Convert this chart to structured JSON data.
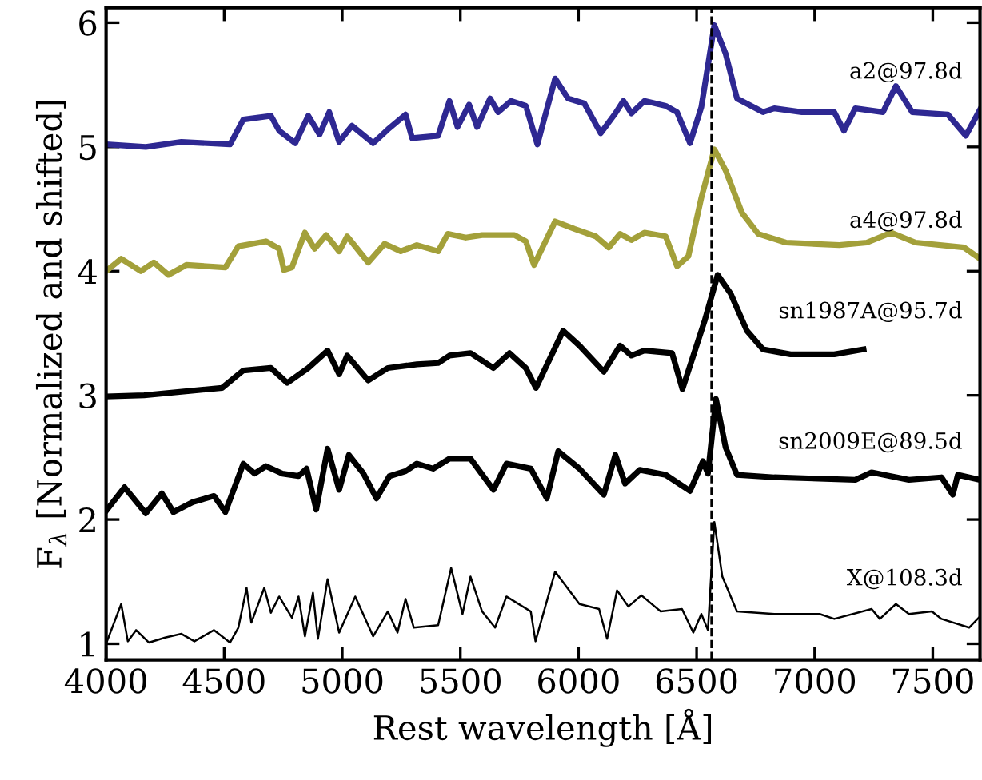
{
  "chart_data": {
    "type": "line",
    "xlabel": "Rest wavelength [Å]",
    "ylabel": "F$_{λ}$ [Normalized and shifted]",
    "xlim": [
      4000,
      7700
    ],
    "xticks": [
      4000,
      4500,
      5000,
      5500,
      6000,
      6500,
      7000,
      7500
    ],
    "ylim": [
      0.87,
      6.12
    ],
    "yticks": [
      1,
      2,
      3,
      4,
      5,
      6
    ],
    "grid": false,
    "legend": false,
    "marker": "none",
    "line_style": "solid",
    "ref_lines": [
      {
        "axis": "x",
        "value": 6563,
        "color": "#000000",
        "line_style": "dashed"
      }
    ],
    "series": [
      {
        "name": "a2@97.8d",
        "color": "#2e2892",
        "x": [
          4000,
          4168,
          4319,
          4525,
          4581,
          4698,
          4733,
          4801,
          4856,
          4904,
          4945,
          4987,
          5041,
          5131,
          5193,
          5268,
          5296,
          5406,
          5454,
          5488,
          5537,
          5571,
          5626,
          5660,
          5715,
          5777,
          5826,
          5901,
          5956,
          6025,
          6094,
          6156,
          6190,
          6224,
          6279,
          6369,
          6417,
          6472,
          6520,
          6575,
          6623,
          6671,
          6781,
          6829,
          6946,
          7083,
          7124,
          7172,
          7289,
          7344,
          7413,
          7564,
          7640,
          7700
        ],
        "values": [
          5.02,
          5.0,
          5.04,
          5.02,
          5.22,
          5.25,
          5.13,
          5.03,
          5.25,
          5.1,
          5.28,
          5.04,
          5.17,
          5.03,
          5.14,
          5.26,
          5.07,
          5.09,
          5.37,
          5.16,
          5.34,
          5.16,
          5.39,
          5.28,
          5.37,
          5.33,
          5.02,
          5.55,
          5.39,
          5.35,
          5.11,
          5.27,
          5.37,
          5.27,
          5.37,
          5.33,
          5.28,
          5.03,
          5.32,
          5.98,
          5.75,
          5.39,
          5.28,
          5.31,
          5.28,
          5.28,
          5.13,
          5.31,
          5.28,
          5.49,
          5.28,
          5.26,
          5.09,
          5.3
        ]
      },
      {
        "name": "a4@97.8d",
        "color": "#a3a03a",
        "x": [
          4000,
          4064,
          4147,
          4202,
          4264,
          4340,
          4505,
          4560,
          4677,
          4733,
          4753,
          4787,
          4842,
          4883,
          4932,
          4987,
          5021,
          5110,
          5179,
          5248,
          5316,
          5406,
          5447,
          5523,
          5592,
          5729,
          5777,
          5812,
          5901,
          5983,
          6073,
          6128,
          6176,
          6224,
          6279,
          6369,
          6417,
          6465,
          6520,
          6575,
          6623,
          6692,
          6761,
          6878,
          7104,
          7221,
          7324,
          7427,
          7633,
          7700
        ],
        "values": [
          4.0,
          4.1,
          4.0,
          4.07,
          3.97,
          4.05,
          4.03,
          4.2,
          4.24,
          4.18,
          4.01,
          4.03,
          4.31,
          4.18,
          4.29,
          4.16,
          4.28,
          4.07,
          4.22,
          4.16,
          4.21,
          4.16,
          4.3,
          4.27,
          4.29,
          4.29,
          4.24,
          4.05,
          4.4,
          4.34,
          4.28,
          4.19,
          4.3,
          4.25,
          4.31,
          4.28,
          4.04,
          4.12,
          4.59,
          4.98,
          4.81,
          4.47,
          4.3,
          4.23,
          4.21,
          4.23,
          4.31,
          4.23,
          4.19,
          4.1
        ]
      },
      {
        "name": "sn1987A@95.7d",
        "color": "#000000",
        "x": [
          4000,
          4161,
          4491,
          4581,
          4698,
          4767,
          4856,
          4938,
          4987,
          5021,
          5110,
          5193,
          5316,
          5406,
          5454,
          5543,
          5640,
          5708,
          5777,
          5820,
          5935,
          6004,
          6107,
          6176,
          6224,
          6279,
          6396,
          6440,
          6534,
          6589,
          6644,
          6713,
          6781,
          6898,
          7083,
          7207
        ],
        "values": [
          2.99,
          3.0,
          3.06,
          3.2,
          3.22,
          3.1,
          3.22,
          3.36,
          3.17,
          3.32,
          3.12,
          3.22,
          3.25,
          3.26,
          3.32,
          3.34,
          3.22,
          3.34,
          3.22,
          3.06,
          3.52,
          3.4,
          3.19,
          3.4,
          3.32,
          3.36,
          3.34,
          3.05,
          3.6,
          3.97,
          3.82,
          3.52,
          3.37,
          3.33,
          3.33,
          3.37
        ]
      },
      {
        "name": "sn2009E@89.5d",
        "color": "#000000",
        "x": [
          4000,
          4078,
          4168,
          4236,
          4285,
          4367,
          4457,
          4505,
          4581,
          4629,
          4677,
          4746,
          4815,
          4849,
          4890,
          4938,
          4987,
          5028,
          5090,
          5145,
          5200,
          5268,
          5316,
          5385,
          5454,
          5543,
          5640,
          5695,
          5798,
          5866,
          5914,
          6004,
          6107,
          6156,
          6197,
          6259,
          6369,
          6472,
          6527,
          6548,
          6582,
          6623,
          6671,
          6829,
          7172,
          7241,
          7399,
          7537,
          7585,
          7606,
          7700
        ],
        "values": [
          2.07,
          2.26,
          2.05,
          2.21,
          2.06,
          2.14,
          2.19,
          2.06,
          2.45,
          2.37,
          2.43,
          2.37,
          2.35,
          2.41,
          2.08,
          2.57,
          2.24,
          2.52,
          2.37,
          2.17,
          2.35,
          2.39,
          2.45,
          2.41,
          2.49,
          2.49,
          2.24,
          2.45,
          2.41,
          2.17,
          2.55,
          2.41,
          2.2,
          2.52,
          2.29,
          2.4,
          2.36,
          2.23,
          2.47,
          2.37,
          2.97,
          2.58,
          2.36,
          2.34,
          2.32,
          2.38,
          2.32,
          2.34,
          2.2,
          2.36,
          2.32
        ]
      },
      {
        "name": "X@108.3d",
        "color": "#000000",
        "x": [
          4000,
          4064,
          4092,
          4127,
          4181,
          4250,
          4319,
          4374,
          4457,
          4525,
          4560,
          4595,
          4615,
          4670,
          4698,
          4733,
          4787,
          4815,
          4842,
          4876,
          4897,
          4938,
          4987,
          5055,
          5131,
          5193,
          5234,
          5268,
          5303,
          5406,
          5461,
          5509,
          5543,
          5592,
          5647,
          5695,
          5798,
          5818,
          5901,
          6004,
          6087,
          6121,
          6163,
          6211,
          6266,
          6348,
          6438,
          6486,
          6520,
          6548,
          6575,
          6609,
          6671,
          6829,
          7021,
          7083,
          7241,
          7276,
          7344,
          7399,
          7496,
          7537,
          7654,
          7700
        ],
        "values": [
          1.0,
          1.32,
          1.02,
          1.11,
          1.01,
          1.05,
          1.08,
          1.02,
          1.11,
          1.01,
          1.13,
          1.45,
          1.17,
          1.45,
          1.25,
          1.38,
          1.21,
          1.38,
          1.06,
          1.41,
          1.04,
          1.52,
          1.09,
          1.38,
          1.06,
          1.26,
          1.09,
          1.36,
          1.13,
          1.15,
          1.61,
          1.24,
          1.54,
          1.26,
          1.13,
          1.38,
          1.26,
          1.02,
          1.58,
          1.32,
          1.28,
          1.04,
          1.43,
          1.3,
          1.39,
          1.26,
          1.28,
          1.09,
          1.24,
          1.11,
          1.98,
          1.54,
          1.26,
          1.24,
          1.24,
          1.2,
          1.28,
          1.2,
          1.32,
          1.24,
          1.26,
          1.2,
          1.13,
          1.22
        ]
      }
    ]
  }
}
